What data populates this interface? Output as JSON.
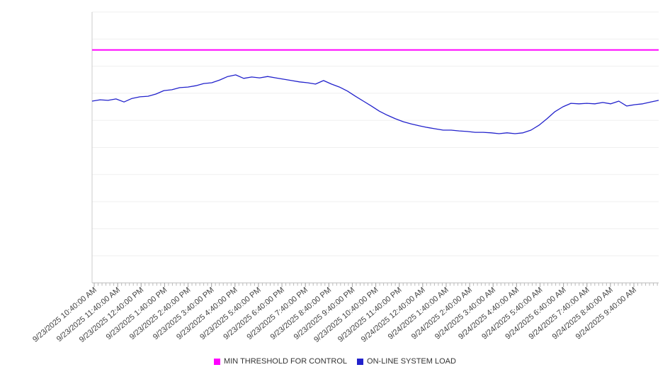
{
  "chart_data": {
    "type": "line",
    "title": "",
    "background": "#ffffff",
    "grid": "horizontal",
    "legend_position": "bottom",
    "y_axis_labels_visible": false,
    "ylim": [
      0,
      100
    ],
    "y_gridline_step": 10,
    "x_labels": [
      "9/23/2025 10:40:00 AM",
      "9/23/2025 11:40:00 AM",
      "9/23/2025 12:40:00 PM",
      "9/23/2025 1:40:00 PM",
      "9/23/2025 2:40:00 PM",
      "9/23/2025 3:40:00 PM",
      "9/23/2025 4:40:00 PM",
      "9/23/2025 5:40:00 PM",
      "9/23/2025 6:40:00 PM",
      "9/23/2025 7:40:00 PM",
      "9/23/2025 8:40:00 PM",
      "9/23/2025 9:40:00 PM",
      "9/23/2025 10:40:00 PM",
      "9/23/2025 11:40:00 PM",
      "9/24/2025 12:40:00 AM",
      "9/24/2025 1:40:00 AM",
      "9/24/2025 2:40:00 AM",
      "9/24/2025 3:40:00 AM",
      "9/24/2025 4:40:00 AM",
      "9/24/2025 5:40:00 AM",
      "9/24/2025 6:40:00 AM",
      "9/24/2025 7:40:00 AM",
      "9/24/2025 8:40:00 AM",
      "9/24/2025 9:40:00 AM"
    ],
    "series": [
      {
        "name": "MIN THRESHOLD FOR CONTROL",
        "color": "#ff00ff",
        "kind": "threshold",
        "value": 86
      },
      {
        "name": "ON-LINE SYSTEM LOAD",
        "color": "#2222cc",
        "kind": "line",
        "values": [
          67.1,
          67.6,
          67.4,
          67.9,
          66.8,
          68.1,
          68.7,
          68.9,
          69.7,
          71.0,
          71.3,
          72.1,
          72.3,
          72.8,
          73.6,
          73.9,
          74.9,
          76.2,
          76.8,
          75.5,
          76.0,
          75.7,
          76.2,
          75.7,
          75.2,
          74.7,
          74.2,
          73.9,
          73.4,
          74.7,
          73.4,
          72.3,
          70.8,
          68.9,
          67.1,
          65.3,
          63.4,
          61.9,
          60.6,
          59.5,
          58.7,
          58.0,
          57.4,
          56.9,
          56.4,
          56.4,
          56.1,
          55.9,
          55.6,
          55.6,
          55.4,
          55.1,
          55.4,
          55.1,
          55.4,
          56.4,
          58.2,
          60.6,
          63.2,
          65.0,
          66.3,
          66.1,
          66.3,
          66.1,
          66.6,
          66.1,
          67.1,
          65.3,
          65.8,
          66.1,
          66.8,
          67.4
        ]
      }
    ]
  }
}
